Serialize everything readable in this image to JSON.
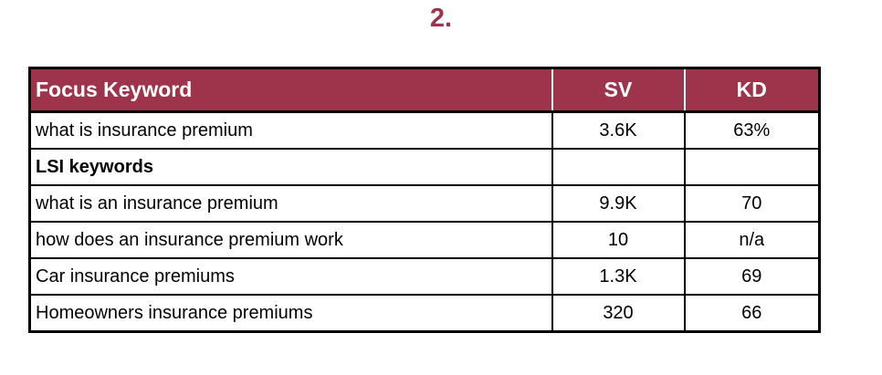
{
  "heading": "2.",
  "table": {
    "headers": [
      "Focus Keyword",
      "SV",
      "KD"
    ],
    "rows": [
      {
        "keyword": "what is insurance premium",
        "sv": "3.6K",
        "kd": "63%"
      },
      {
        "keyword": "LSI keywords",
        "sv": "",
        "kd": "",
        "section": true
      },
      {
        "keyword": "what is an insurance premium",
        "sv": "9.9K",
        "kd": "70"
      },
      {
        "keyword": "how does an insurance premium work",
        "sv": "10",
        "kd": "n/a"
      },
      {
        "keyword": "Car insurance premiums",
        "sv": "1.3K",
        "kd": "69"
      },
      {
        "keyword": "Homeowners insurance premiums",
        "sv": "320",
        "kd": "66"
      }
    ]
  },
  "colors": {
    "header_bg": "#9d344b",
    "heading_text": "#9d344b",
    "header_text": "#ffffff",
    "border": "#000000"
  }
}
